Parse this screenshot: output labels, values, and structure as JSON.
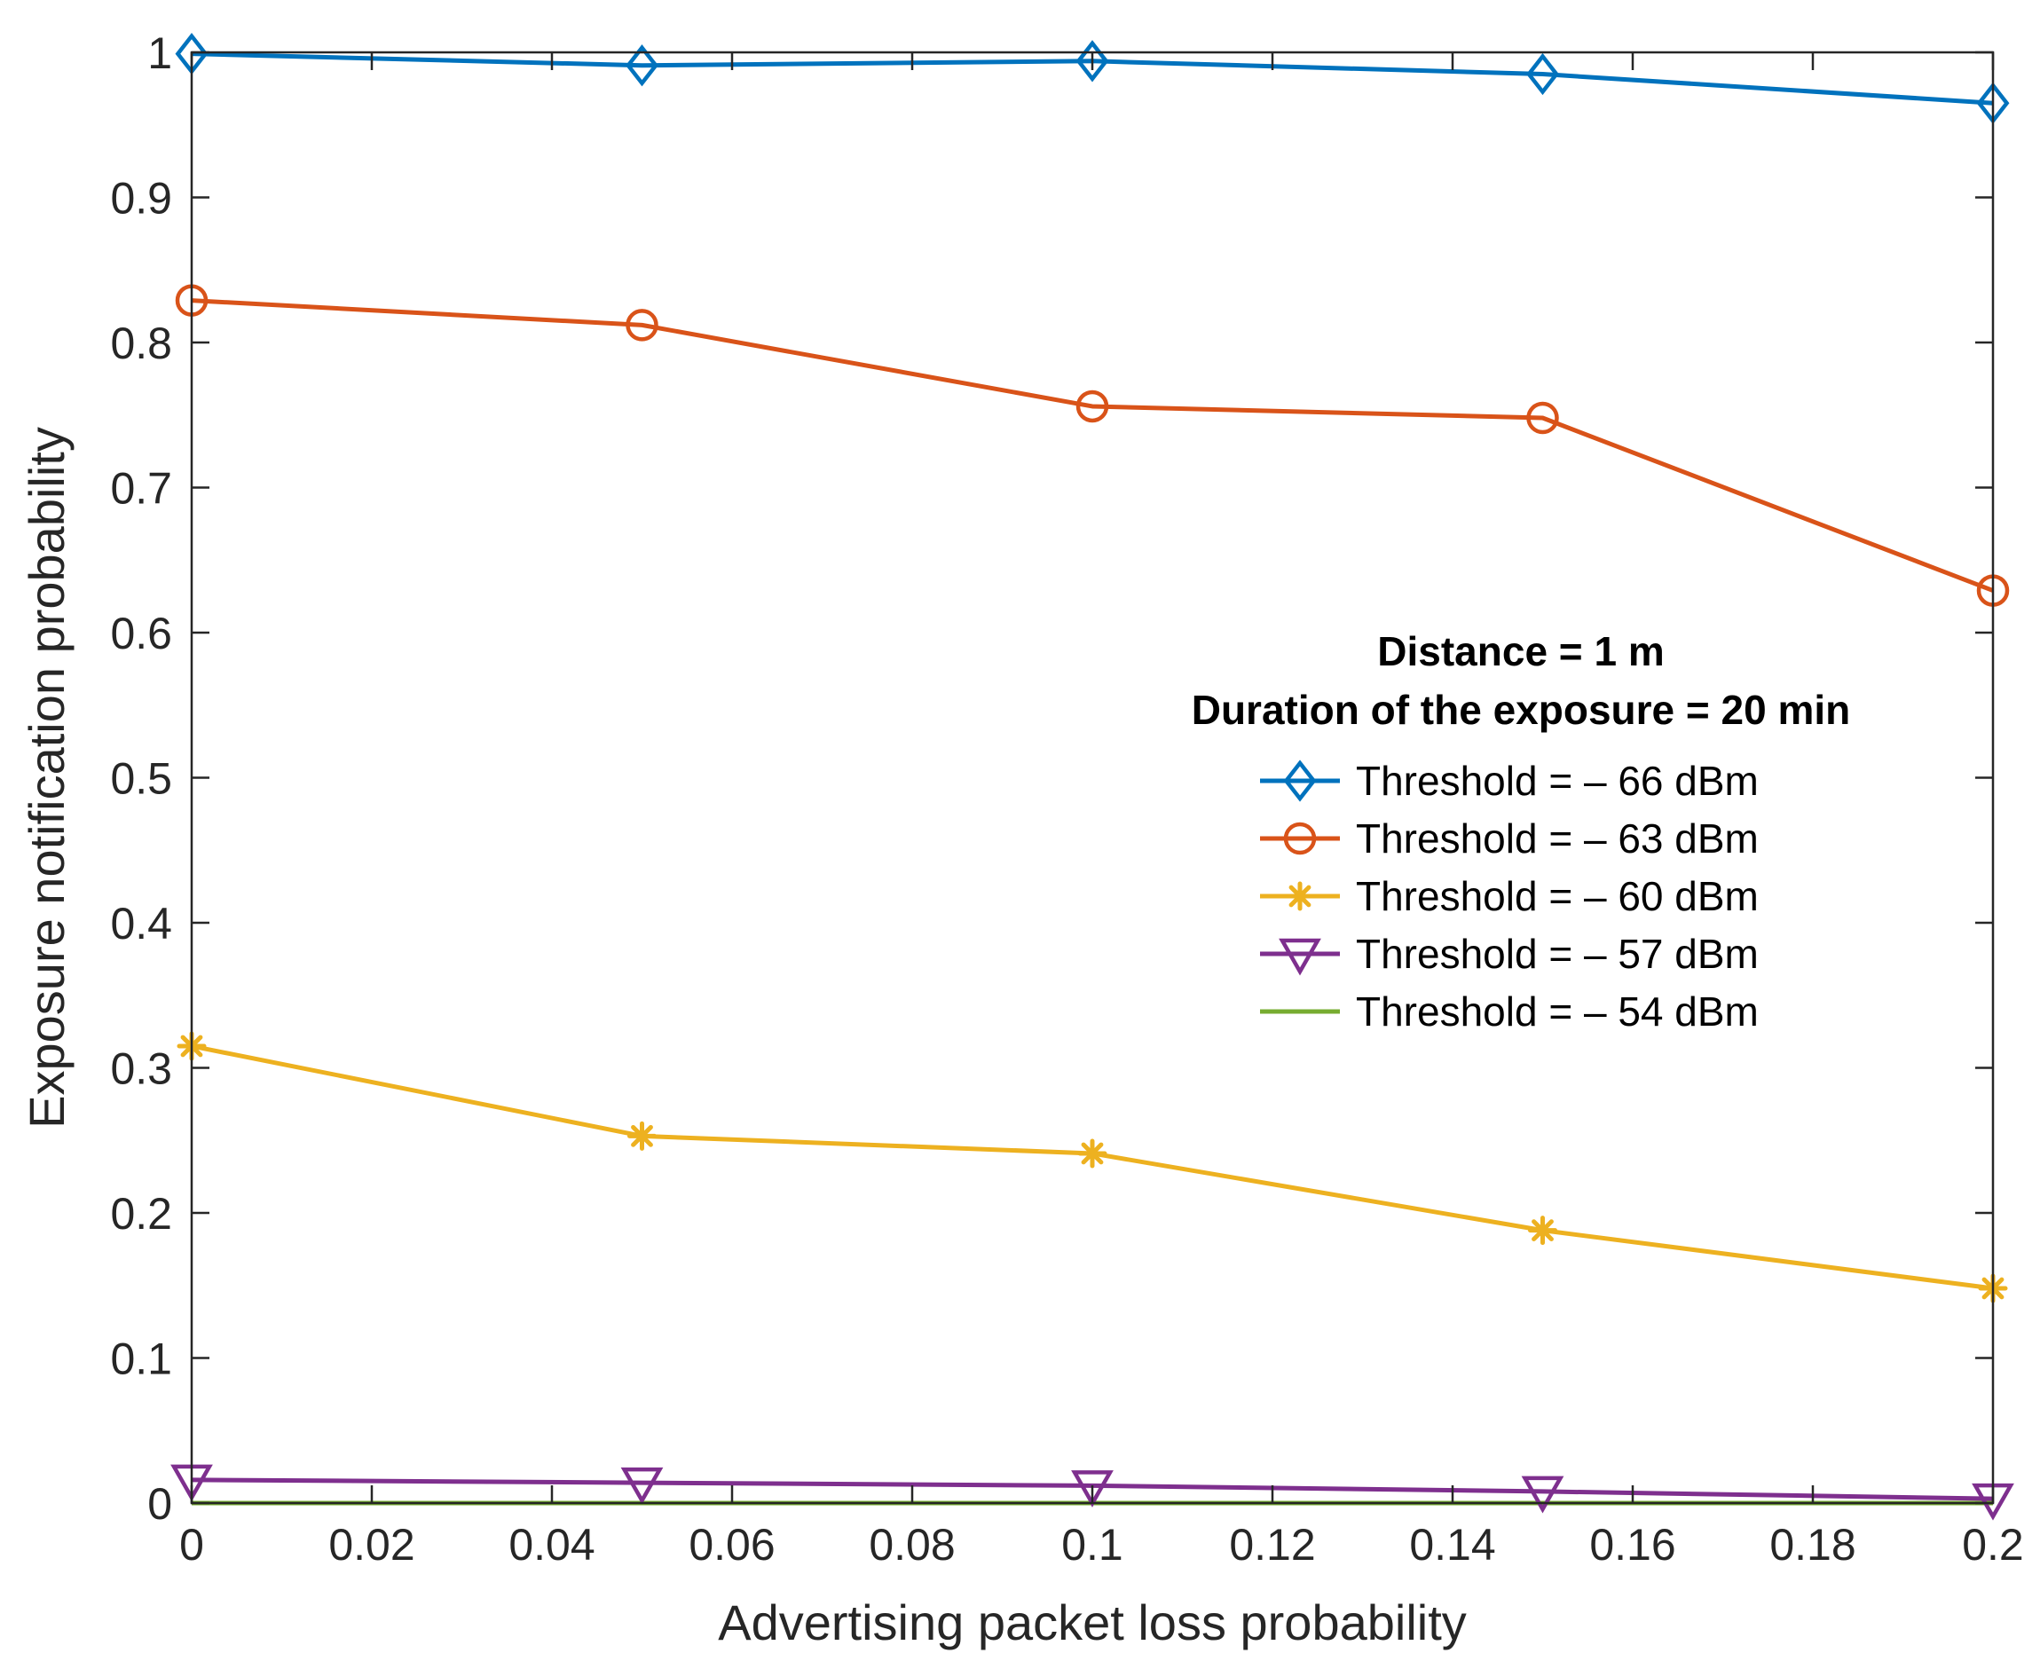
{
  "chart_data": {
    "type": "line",
    "title": "",
    "xlabel": "Advertising packet loss probability",
    "ylabel": "Exposure notification probability",
    "xlim": [
      0,
      0.2
    ],
    "ylim": [
      0,
      1
    ],
    "xticks": [
      "0",
      "0.02",
      "0.04",
      "0.06",
      "0.08",
      "0.1",
      "0.12",
      "0.14",
      "0.16",
      "0.18",
      "0.2"
    ],
    "xtick_values": [
      0,
      0.02,
      0.04,
      0.06,
      0.08,
      0.1,
      0.12,
      0.14,
      0.16,
      0.18,
      0.2
    ],
    "yticks": [
      "0",
      "0.1",
      "0.2",
      "0.3",
      "0.4",
      "0.5",
      "0.6",
      "0.7",
      "0.8",
      "0.9",
      "1"
    ],
    "ytick_values": [
      0,
      0.1,
      0.2,
      0.3,
      0.4,
      0.5,
      0.6,
      0.7,
      0.8,
      0.9,
      1
    ],
    "grid": false,
    "annotations": [
      "Distance = 1 m",
      "Duration of the exposure = 20 min"
    ],
    "legend_position": "right",
    "x": [
      0,
      0.05,
      0.1,
      0.15,
      0.2
    ],
    "series": [
      {
        "name": "Threshold = – 66 dBm",
        "marker": "diamond",
        "color": "#0072BD",
        "values": [
          0.999,
          0.991,
          0.994,
          0.985,
          0.965
        ]
      },
      {
        "name": "Threshold = – 63 dBm",
        "marker": "circle",
        "color": "#D95319",
        "values": [
          0.829,
          0.812,
          0.756,
          0.748,
          0.629
        ]
      },
      {
        "name": "Threshold = – 60 dBm",
        "marker": "asterisk",
        "color": "#EDB120",
        "values": [
          0.315,
          0.253,
          0.241,
          0.188,
          0.148
        ]
      },
      {
        "name": "Threshold = – 57 dBm",
        "marker": "triangle-down",
        "color": "#7E2F8E",
        "values": [
          0.016,
          0.014,
          0.012,
          0.008,
          0.003
        ]
      },
      {
        "name": "Threshold = – 54 dBm",
        "marker": "none",
        "color": "#77AC30",
        "values": [
          0,
          0,
          0,
          0,
          0
        ]
      }
    ]
  }
}
